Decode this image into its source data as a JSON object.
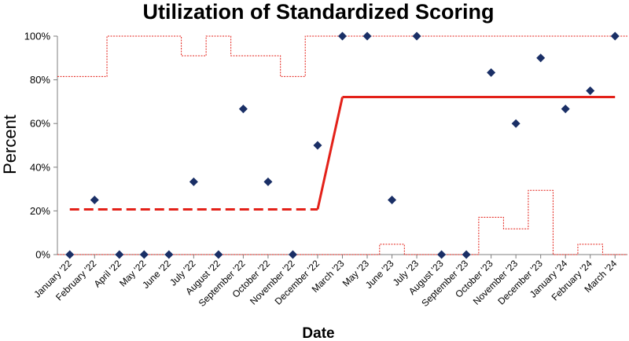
{
  "chart_data": {
    "type": "line",
    "title": "Utilization of Standardized Scoring",
    "xlabel": "Date",
    "ylabel": "Percent",
    "ylim": [
      0,
      100
    ],
    "y_ticks": [
      "0%",
      "20%",
      "40%",
      "60%",
      "80%",
      "100%"
    ],
    "grid": false,
    "legend": "none",
    "categories": [
      "January '22",
      "February '22",
      "April '22",
      "May '22",
      "June '22",
      "July '22",
      "August '22",
      "September '22",
      "October '22",
      "November '22",
      "December '22",
      "March '23",
      "May '23",
      "June '23",
      "July '23",
      "August '23",
      "September '23",
      "October '23",
      "November '23",
      "December '23",
      "January '24",
      "February '24",
      "March '24"
    ],
    "series": [
      {
        "kind": "markers",
        "marker": "diamond",
        "color": "#1a2f66",
        "values": [
          0,
          25,
          0,
          0,
          0,
          33.3,
          0,
          66.7,
          33.3,
          0,
          50,
          100,
          100,
          25,
          100,
          0,
          0,
          83.3,
          60,
          90,
          66.7,
          75,
          100
        ]
      },
      {
        "kind": "center-line",
        "color": "#e32119",
        "values": [
          20.7,
          20.7,
          20.7,
          20.7,
          20.7,
          20.7,
          20.7,
          20.7,
          20.7,
          20.7,
          20.7,
          72.1,
          72.1,
          72.1,
          72.1,
          72.1,
          72.1,
          72.1,
          72.1,
          72.1,
          72.1,
          72.1,
          72.1
        ]
      },
      {
        "kind": "upper-limit",
        "color": "#e32119",
        "values": [
          81.5,
          81.5,
          100,
          100,
          100,
          91,
          100,
          91,
          91,
          81.5,
          100,
          100,
          100,
          100,
          100,
          100,
          100,
          100,
          100,
          100,
          100,
          100,
          100
        ]
      },
      {
        "kind": "lower-limit",
        "color": "#e32119",
        "values": [
          0,
          0,
          0,
          0,
          0,
          0,
          0,
          0,
          0,
          0,
          0,
          0,
          0,
          4.7,
          0,
          0,
          0,
          17.1,
          11.8,
          29.4,
          0,
          4.7,
          0
        ]
      }
    ]
  }
}
